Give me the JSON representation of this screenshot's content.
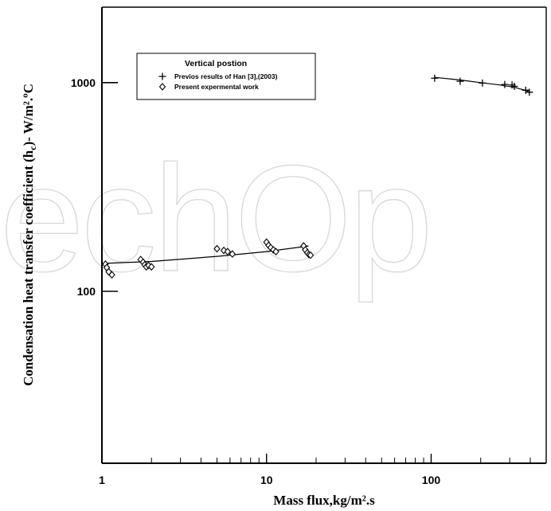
{
  "chart_data": {
    "type": "scatter",
    "xlabel": "Mass flux,kg/m².s",
    "ylabel_main": "Condensation heat transfer coefficient  (h",
    "ylabel_sub": "c",
    "ylabel_units": ")-  W/m².ºC",
    "x_scale": "log",
    "y_scale": "log",
    "xlim": [
      1,
      500
    ],
    "ylim": [
      15,
      2300
    ],
    "x_tick_labels": [
      {
        "value": 1,
        "label": "1"
      },
      {
        "value": 10,
        "label": "10"
      },
      {
        "value": 100,
        "label": "100"
      }
    ],
    "y_tick_labels": [
      {
        "value": 100,
        "label": "100"
      },
      {
        "value": 1000,
        "label": "1000"
      }
    ],
    "grid": false,
    "legend_position": "top-left",
    "legend_title": "Vertical postion",
    "watermark_text": "echOp",
    "series": [
      {
        "name": "Previos results of Han [3],(2003)",
        "marker": "plus",
        "points": [
          [
            105,
            1050
          ],
          [
            150,
            1015
          ],
          [
            205,
            995
          ],
          [
            280,
            980
          ],
          [
            310,
            975
          ],
          [
            320,
            960
          ],
          [
            375,
            920
          ],
          [
            395,
            900
          ]
        ],
        "fit": [
          [
            105,
            1060
          ],
          [
            150,
            1030
          ],
          [
            200,
            1000
          ],
          [
            260,
            975
          ],
          [
            320,
            950
          ],
          [
            380,
            915
          ],
          [
            400,
            895
          ]
        ]
      },
      {
        "name": "Present expermental work",
        "marker": "diamond",
        "points": [
          [
            1.05,
            135
          ],
          [
            1.07,
            130
          ],
          [
            1.1,
            124
          ],
          [
            1.15,
            120
          ],
          [
            1.72,
            142
          ],
          [
            1.78,
            138
          ],
          [
            1.82,
            134
          ],
          [
            1.86,
            131
          ],
          [
            1.92,
            133
          ],
          [
            2.0,
            131
          ],
          [
            5.0,
            160
          ],
          [
            5.5,
            157
          ],
          [
            5.8,
            155
          ],
          [
            6.2,
            151
          ],
          [
            10.0,
            172
          ],
          [
            10.3,
            166
          ],
          [
            10.6,
            162
          ],
          [
            11.0,
            158
          ],
          [
            11.4,
            155
          ],
          [
            16.8,
            165
          ],
          [
            17.2,
            158
          ],
          [
            17.7,
            153
          ],
          [
            18.1,
            150
          ],
          [
            18.5,
            149
          ]
        ],
        "fit": [
          [
            1,
            136
          ],
          [
            2,
            139
          ],
          [
            5,
            147
          ],
          [
            10,
            155
          ],
          [
            18,
            165
          ]
        ]
      }
    ]
  }
}
